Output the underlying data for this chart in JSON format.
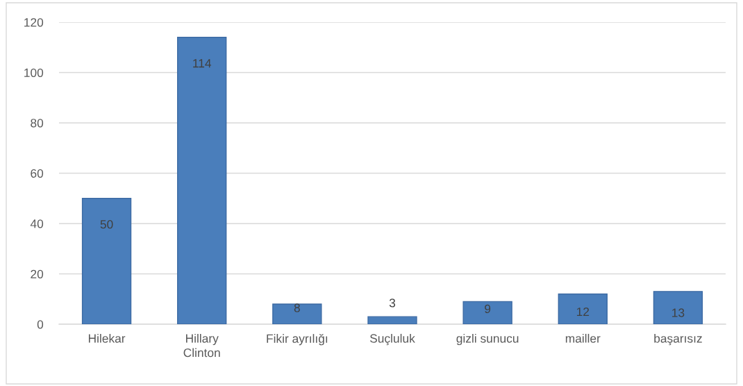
{
  "chart_data": {
    "type": "bar",
    "categories": [
      "Hilekar",
      "Hillary\nClinton",
      "Fikir ayrılığı",
      "Suçluluk",
      "gizli sunucu",
      "mailler",
      "başarısız"
    ],
    "values": [
      50,
      114,
      8,
      3,
      9,
      12,
      13
    ],
    "color": "#4a7ebb",
    "ylim": [
      0,
      120
    ],
    "yticks": [
      0,
      20,
      40,
      60,
      80,
      100,
      120
    ],
    "grid": "y",
    "legend": false,
    "data_labels": true
  }
}
